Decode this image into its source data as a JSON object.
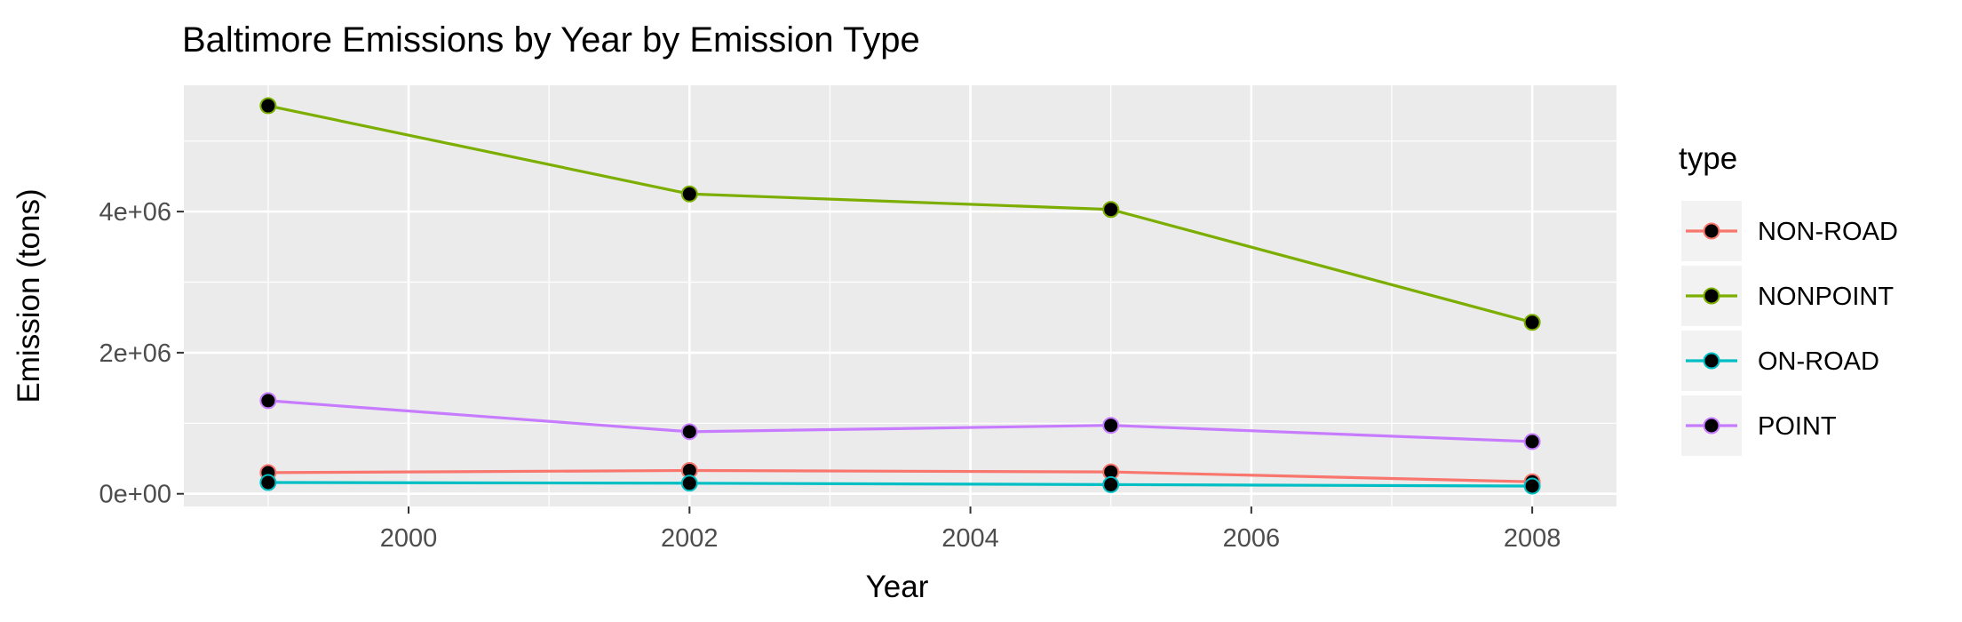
{
  "chart_data": {
    "type": "line",
    "title": "Baltimore Emissions by Year by Emission Type",
    "xlabel": "Year",
    "ylabel": "Emission (tons)",
    "x": [
      1999,
      2002,
      2005,
      2008
    ],
    "xlim": [
      1998.4,
      2008.6
    ],
    "ylim": [
      -180000,
      5790000
    ],
    "x_ticks": [
      2000,
      2002,
      2004,
      2006,
      2008
    ],
    "x_tick_labels": [
      "2000",
      "2002",
      "2004",
      "2006",
      "2008"
    ],
    "y_ticks": [
      0,
      2000000,
      4000000
    ],
    "y_tick_labels": [
      "0e+00",
      "2e+06",
      "4e+06"
    ],
    "grid": true,
    "legend_title": "type",
    "legend_position": "right",
    "series": [
      {
        "name": "NON-ROAD",
        "color": "#F8766D",
        "values": [
          300000,
          330000,
          310000,
          170000
        ]
      },
      {
        "name": "NONPOINT",
        "color": "#7CAE00",
        "values": [
          5500000,
          4250000,
          4030000,
          2430000
        ]
      },
      {
        "name": "ON-ROAD",
        "color": "#00BFC4",
        "values": [
          160000,
          150000,
          130000,
          110000
        ]
      },
      {
        "name": "POINT",
        "color": "#C77CFF",
        "values": [
          1320000,
          880000,
          970000,
          740000
        ]
      }
    ]
  }
}
